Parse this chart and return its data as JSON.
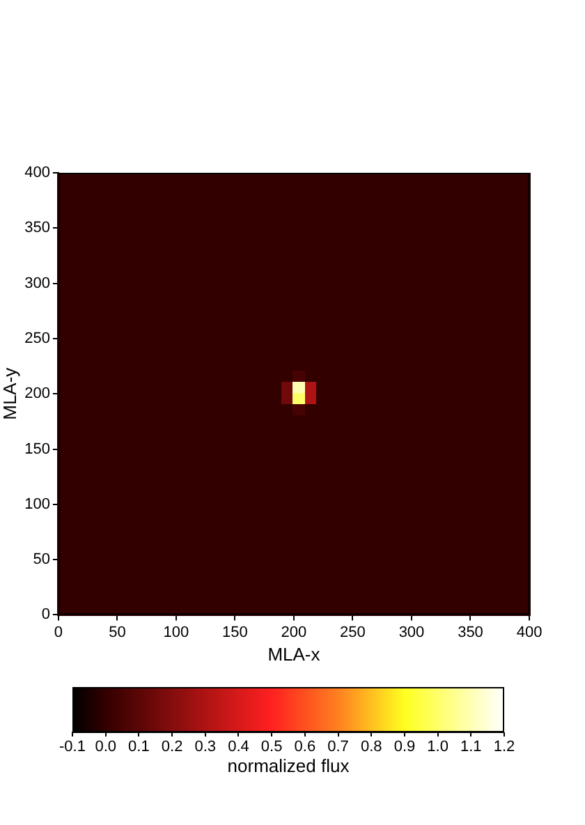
{
  "chart_data": {
    "type": "heatmap",
    "xlabel": "MLA-x",
    "ylabel": "MLA-y",
    "clabel": "normalized flux",
    "xlim": [
      0,
      400
    ],
    "xticks": [
      0,
      50,
      100,
      150,
      200,
      250,
      300,
      350,
      400
    ],
    "ylim": [
      0,
      400
    ],
    "yticks": [
      0,
      50,
      100,
      150,
      200,
      250,
      300,
      350,
      400
    ],
    "clim": [
      -0.1,
      1.2
    ],
    "cticks": [
      -0.1,
      {
        "value": 0,
        "label": "0.0"
      },
      0.1,
      0.2,
      0.3,
      0.4,
      0.5,
      0.6,
      0.7,
      0.8,
      0.9,
      {
        "value": 1,
        "label": "1.0"
      },
      1.1,
      1.2
    ],
    "grid": false,
    "cells": [
      [
        0,
        0,
        0,
        0,
        0,
        0,
        0,
        0,
        0,
        0,
        0,
        0,
        0,
        0,
        0,
        0,
        0,
        0,
        0,
        0,
        0,
        0,
        0,
        0,
        0,
        0,
        0,
        0,
        0,
        0,
        0,
        0,
        0,
        0,
        0,
        0,
        0,
        0,
        0,
        0
      ],
      [
        0,
        0,
        0,
        0,
        0,
        0,
        0,
        0,
        0,
        0,
        0,
        0,
        0,
        0,
        0,
        0,
        0,
        0,
        0,
        0,
        0,
        0,
        0,
        0,
        0,
        0,
        0,
        0,
        0,
        0,
        0,
        0,
        0,
        0,
        0,
        0,
        0,
        0,
        0,
        0
      ],
      [
        0,
        0,
        0,
        0,
        0,
        0,
        0,
        0,
        0,
        0,
        0,
        0,
        0,
        0,
        0,
        0,
        0,
        0,
        0,
        0,
        0,
        0,
        0,
        0,
        0,
        0,
        0,
        0,
        0,
        0,
        0,
        0,
        0,
        0,
        0,
        0,
        0,
        0,
        0,
        0
      ],
      [
        0,
        0,
        0,
        0,
        0,
        0,
        0,
        0,
        0,
        0,
        0,
        0,
        0,
        0,
        0,
        0,
        0,
        0,
        0,
        0,
        0,
        0,
        0,
        0,
        0,
        0,
        0,
        0,
        0,
        0,
        0,
        0,
        0,
        0,
        0,
        0,
        0,
        0,
        0,
        0
      ],
      [
        0,
        0,
        0,
        0,
        0,
        0,
        0,
        0,
        0,
        0,
        0,
        0,
        0,
        0,
        0,
        0,
        0,
        0,
        0,
        0,
        0,
        0,
        0,
        0,
        0,
        0,
        0,
        0,
        0,
        0,
        0,
        0,
        0,
        0,
        0,
        0,
        0,
        0,
        0,
        0
      ],
      [
        0,
        0,
        0,
        0,
        0,
        0,
        0,
        0,
        0,
        0,
        0,
        0,
        0,
        0,
        0,
        0,
        0,
        0,
        0,
        0,
        0,
        0,
        0,
        0,
        0,
        0,
        0,
        0,
        0,
        0,
        0,
        0,
        0,
        0,
        0,
        0,
        0,
        0,
        0,
        0
      ],
      [
        0,
        0,
        0,
        0,
        0,
        0,
        0,
        0,
        0,
        0,
        0,
        0,
        0,
        0,
        0,
        0,
        0,
        0,
        0,
        0,
        0,
        0,
        0,
        0,
        0,
        0,
        0,
        0,
        0,
        0,
        0,
        0,
        0,
        0,
        0,
        0,
        0,
        0,
        0,
        0
      ],
      [
        0,
        0,
        0,
        0,
        0,
        0,
        0,
        0,
        0,
        0,
        0,
        0,
        0,
        0,
        0,
        0,
        0,
        0,
        0,
        0,
        0,
        0,
        0,
        0,
        0,
        0,
        0,
        0,
        0,
        0,
        0,
        0,
        0,
        0,
        0,
        0,
        0,
        0,
        0,
        0
      ],
      [
        0,
        0,
        0,
        0,
        0,
        0,
        0,
        0,
        0,
        0,
        0,
        0,
        0,
        0,
        0,
        0,
        0,
        0,
        0,
        0,
        0,
        0,
        0,
        0,
        0,
        0,
        0,
        0,
        0,
        0,
        0,
        0,
        0,
        0,
        0,
        0,
        0,
        0,
        0,
        0
      ],
      [
        0,
        0,
        0,
        0,
        0,
        0,
        0,
        0,
        0,
        0,
        0,
        0,
        0,
        0,
        0,
        0,
        0,
        0,
        0,
        0,
        0,
        0,
        0,
        0,
        0,
        0,
        0,
        0,
        0,
        0,
        0,
        0,
        0,
        0,
        0,
        0,
        0,
        0,
        0,
        0
      ],
      [
        0,
        0,
        0,
        0,
        0,
        0,
        0,
        0,
        0,
        0,
        0,
        0,
        0,
        0,
        0,
        0,
        0,
        0,
        0,
        0,
        0,
        0,
        0,
        0,
        0,
        0,
        0,
        0,
        0,
        0,
        0,
        0,
        0,
        0,
        0,
        0,
        0,
        0,
        0,
        0
      ],
      [
        0,
        0,
        0,
        0,
        0,
        0,
        0,
        0,
        0,
        0,
        0,
        0,
        0,
        0,
        0,
        0,
        0,
        0,
        0,
        0,
        0,
        0,
        0,
        0,
        0,
        0,
        0,
        0,
        0,
        0,
        0,
        0,
        0,
        0,
        0,
        0,
        0,
        0,
        0,
        0
      ],
      [
        0,
        0,
        0,
        0,
        0,
        0,
        0,
        0,
        0,
        0,
        0,
        0,
        0,
        0,
        0,
        0,
        0,
        0,
        0,
        0,
        0,
        0,
        0,
        0,
        0,
        0,
        0,
        0,
        0,
        0,
        0,
        0,
        0,
        0,
        0,
        0,
        0,
        0,
        0,
        0
      ],
      [
        0,
        0,
        0,
        0,
        0,
        0,
        0,
        0,
        0,
        0,
        0,
        0,
        0,
        0,
        0,
        0,
        0,
        0,
        0,
        0,
        0,
        0,
        0,
        0,
        0,
        0,
        0,
        0,
        0,
        0,
        0,
        0,
        0,
        0,
        0,
        0,
        0,
        0,
        0,
        0
      ],
      [
        0,
        0,
        0,
        0,
        0,
        0,
        0,
        0,
        0,
        0,
        0,
        0,
        0,
        0,
        0,
        0,
        0,
        0,
        0,
        0,
        0,
        0,
        0,
        0,
        0,
        0,
        0,
        0,
        0,
        0,
        0,
        0,
        0,
        0,
        0,
        0,
        0,
        0,
        0,
        0
      ],
      [
        0,
        0,
        0,
        0,
        0,
        0,
        0,
        0,
        0,
        0,
        0,
        0,
        0,
        0,
        0,
        0,
        0,
        0,
        0,
        0,
        0,
        0,
        0,
        0,
        0,
        0,
        0,
        0,
        0,
        0,
        0,
        0,
        0,
        0,
        0,
        0,
        0,
        0,
        0,
        0
      ],
      [
        0,
        0,
        0,
        0,
        0,
        0,
        0,
        0,
        0,
        0,
        0,
        0,
        0,
        0,
        0,
        0,
        0,
        0,
        0,
        0,
        0,
        0,
        0,
        0,
        0,
        0,
        0,
        0,
        0,
        0,
        0,
        0,
        0,
        0,
        0,
        0,
        0,
        0,
        0,
        0
      ],
      [
        0,
        0,
        0,
        0,
        0,
        0,
        0,
        0,
        0,
        0,
        0,
        0,
        0,
        0,
        0,
        0,
        0,
        0,
        0,
        0,
        0,
        0,
        0,
        0,
        0,
        0,
        0,
        0,
        0,
        0,
        0,
        0,
        0,
        0,
        0,
        0,
        0,
        0,
        0,
        0
      ],
      [
        0,
        0,
        0,
        0,
        0,
        0,
        0,
        0,
        0,
        0,
        0,
        0,
        0,
        0,
        0,
        0,
        0,
        0,
        0,
        0,
        0.05,
        0,
        0,
        0,
        0,
        0,
        0,
        0,
        0,
        0,
        0,
        0,
        0,
        0,
        0,
        0,
        0,
        0,
        0,
        0
      ],
      [
        0,
        0,
        0,
        0,
        0,
        0,
        0,
        0,
        0,
        0,
        0,
        0,
        0,
        0,
        0,
        0,
        0,
        0,
        0,
        0.15,
        1.1,
        0.3,
        0,
        0,
        0,
        0,
        0,
        0,
        0,
        0,
        0,
        0,
        0,
        0,
        0,
        0,
        0,
        0,
        0,
        0
      ],
      [
        0,
        0,
        0,
        0,
        0,
        0,
        0,
        0,
        0,
        0,
        0,
        0,
        0,
        0,
        0,
        0,
        0,
        0,
        0,
        0.15,
        1.0,
        0.3,
        0,
        0,
        0,
        0,
        0,
        0,
        0,
        0,
        0,
        0,
        0,
        0,
        0,
        0,
        0,
        0,
        0,
        0
      ],
      [
        0,
        0,
        0,
        0,
        0,
        0,
        0,
        0,
        0,
        0,
        0,
        0,
        0,
        0,
        0,
        0,
        0,
        0,
        0,
        0,
        0.05,
        0,
        0,
        0,
        0,
        0,
        0,
        0,
        0,
        0,
        0,
        0,
        0,
        0,
        0,
        0,
        0,
        0,
        0,
        0
      ],
      [
        0,
        0,
        0,
        0,
        0,
        0,
        0,
        0,
        0,
        0,
        0,
        0,
        0,
        0,
        0,
        0,
        0,
        0,
        0,
        0,
        0,
        0,
        0,
        0,
        0,
        0,
        0,
        0,
        0,
        0,
        0,
        0,
        0,
        0,
        0,
        0,
        0,
        0,
        0,
        0
      ],
      [
        0,
        0,
        0,
        0,
        0,
        0,
        0,
        0,
        0,
        0,
        0,
        0,
        0,
        0,
        0,
        0,
        0,
        0,
        0,
        0,
        0,
        0,
        0,
        0,
        0,
        0,
        0,
        0,
        0,
        0,
        0,
        0,
        0,
        0,
        0,
        0,
        0,
        0,
        0,
        0
      ],
      [
        0,
        0,
        0,
        0,
        0,
        0,
        0,
        0,
        0,
        0,
        0,
        0,
        0,
        0,
        0,
        0,
        0,
        0,
        0,
        0,
        0,
        0,
        0,
        0,
        0,
        0,
        0,
        0,
        0,
        0,
        0,
        0,
        0,
        0,
        0,
        0,
        0,
        0,
        0,
        0
      ],
      [
        0,
        0,
        0,
        0,
        0,
        0,
        0,
        0,
        0,
        0,
        0,
        0,
        0,
        0,
        0,
        0,
        0,
        0,
        0,
        0,
        0,
        0,
        0,
        0,
        0,
        0,
        0,
        0,
        0,
        0,
        0,
        0,
        0,
        0,
        0,
        0,
        0,
        0,
        0,
        0
      ],
      [
        0,
        0,
        0,
        0,
        0,
        0,
        0,
        0,
        0,
        0,
        0,
        0,
        0,
        0,
        0,
        0,
        0,
        0,
        0,
        0,
        0,
        0,
        0,
        0,
        0,
        0,
        0,
        0,
        0,
        0,
        0,
        0,
        0,
        0,
        0,
        0,
        0,
        0,
        0,
        0
      ],
      [
        0,
        0,
        0,
        0,
        0,
        0,
        0,
        0,
        0,
        0,
        0,
        0,
        0,
        0,
        0,
        0,
        0,
        0,
        0,
        0,
        0,
        0,
        0,
        0,
        0,
        0,
        0,
        0,
        0,
        0,
        0,
        0,
        0,
        0,
        0,
        0,
        0,
        0,
        0,
        0
      ],
      [
        0,
        0,
        0,
        0,
        0,
        0,
        0,
        0,
        0,
        0,
        0,
        0,
        0,
        0,
        0,
        0,
        0,
        0,
        0,
        0,
        0,
        0,
        0,
        0,
        0,
        0,
        0,
        0,
        0,
        0,
        0,
        0,
        0,
        0,
        0,
        0,
        0,
        0,
        0,
        0
      ],
      [
        0,
        0,
        0,
        0,
        0,
        0,
        0,
        0,
        0,
        0,
        0,
        0,
        0,
        0,
        0,
        0,
        0,
        0,
        0,
        0,
        0,
        0,
        0,
        0,
        0,
        0,
        0,
        0,
        0,
        0,
        0,
        0,
        0,
        0,
        0,
        0,
        0,
        0,
        0,
        0
      ],
      [
        0,
        0,
        0,
        0,
        0,
        0,
        0,
        0,
        0,
        0,
        0,
        0,
        0,
        0,
        0,
        0,
        0,
        0,
        0,
        0,
        0,
        0,
        0,
        0,
        0,
        0,
        0,
        0,
        0,
        0,
        0,
        0,
        0,
        0,
        0,
        0,
        0,
        0,
        0,
        0
      ],
      [
        0,
        0,
        0,
        0,
        0,
        0,
        0,
        0,
        0,
        0,
        0,
        0,
        0,
        0,
        0,
        0,
        0,
        0,
        0,
        0,
        0,
        0,
        0,
        0,
        0,
        0,
        0,
        0,
        0,
        0,
        0,
        0,
        0,
        0,
        0,
        0,
        0,
        0,
        0,
        0
      ],
      [
        0,
        0,
        0,
        0,
        0,
        0,
        0,
        0,
        0,
        0,
        0,
        0,
        0,
        0,
        0,
        0,
        0,
        0,
        0,
        0,
        0,
        0,
        0,
        0,
        0,
        0,
        0,
        0,
        0,
        0,
        0,
        0,
        0,
        0,
        0,
        0,
        0,
        0,
        0,
        0
      ],
      [
        0,
        0,
        0,
        0,
        0,
        0,
        0,
        0,
        0,
        0,
        0,
        0,
        0,
        0,
        0,
        0,
        0,
        0,
        0,
        0,
        0,
        0,
        0,
        0,
        0,
        0,
        0,
        0,
        0,
        0,
        0,
        0,
        0,
        0,
        0,
        0,
        0,
        0,
        0,
        0
      ],
      [
        0,
        0,
        0,
        0,
        0,
        0,
        0,
        0,
        0,
        0,
        0,
        0,
        0,
        0,
        0,
        0,
        0,
        0,
        0,
        0,
        0,
        0,
        0,
        0,
        0,
        0,
        0,
        0,
        0,
        0,
        0,
        0,
        0,
        0,
        0,
        0,
        0,
        0,
        0,
        0
      ],
      [
        0,
        0,
        0,
        0,
        0,
        0,
        0,
        0,
        0,
        0,
        0,
        0,
        0,
        0,
        0,
        0,
        0,
        0,
        0,
        0,
        0,
        0,
        0,
        0,
        0,
        0,
        0,
        0,
        0,
        0,
        0,
        0,
        0,
        0,
        0,
        0,
        0,
        0,
        0,
        0
      ],
      [
        0,
        0,
        0,
        0,
        0,
        0,
        0,
        0,
        0,
        0,
        0,
        0,
        0,
        0,
        0,
        0,
        0,
        0,
        0,
        0,
        0,
        0,
        0,
        0,
        0,
        0,
        0,
        0,
        0,
        0,
        0,
        0,
        0,
        0,
        0,
        0,
        0,
        0,
        0,
        0
      ],
      [
        0,
        0,
        0,
        0,
        0,
        0,
        0,
        0,
        0,
        0,
        0,
        0,
        0,
        0,
        0,
        0,
        0,
        0,
        0,
        0,
        0,
        0,
        0,
        0,
        0,
        0,
        0,
        0,
        0,
        0,
        0,
        0,
        0,
        0,
        0,
        0,
        0,
        0,
        0,
        0
      ],
      [
        0,
        0,
        0,
        0,
        0,
        0,
        0,
        0,
        0,
        0,
        0,
        0,
        0,
        0,
        0,
        0,
        0,
        0,
        0,
        0,
        0,
        0,
        0,
        0,
        0,
        0,
        0,
        0,
        0,
        0,
        0,
        0,
        0,
        0,
        0,
        0,
        0,
        0,
        0,
        0
      ],
      [
        0,
        0,
        0,
        0,
        0,
        0,
        0,
        0,
        0,
        0,
        0,
        0,
        0,
        0,
        0,
        0,
        0,
        0,
        0,
        0,
        0,
        0,
        0,
        0,
        0,
        0,
        0,
        0,
        0,
        0,
        0,
        0,
        0,
        0,
        0,
        0,
        0,
        0,
        0,
        0
      ]
    ]
  }
}
